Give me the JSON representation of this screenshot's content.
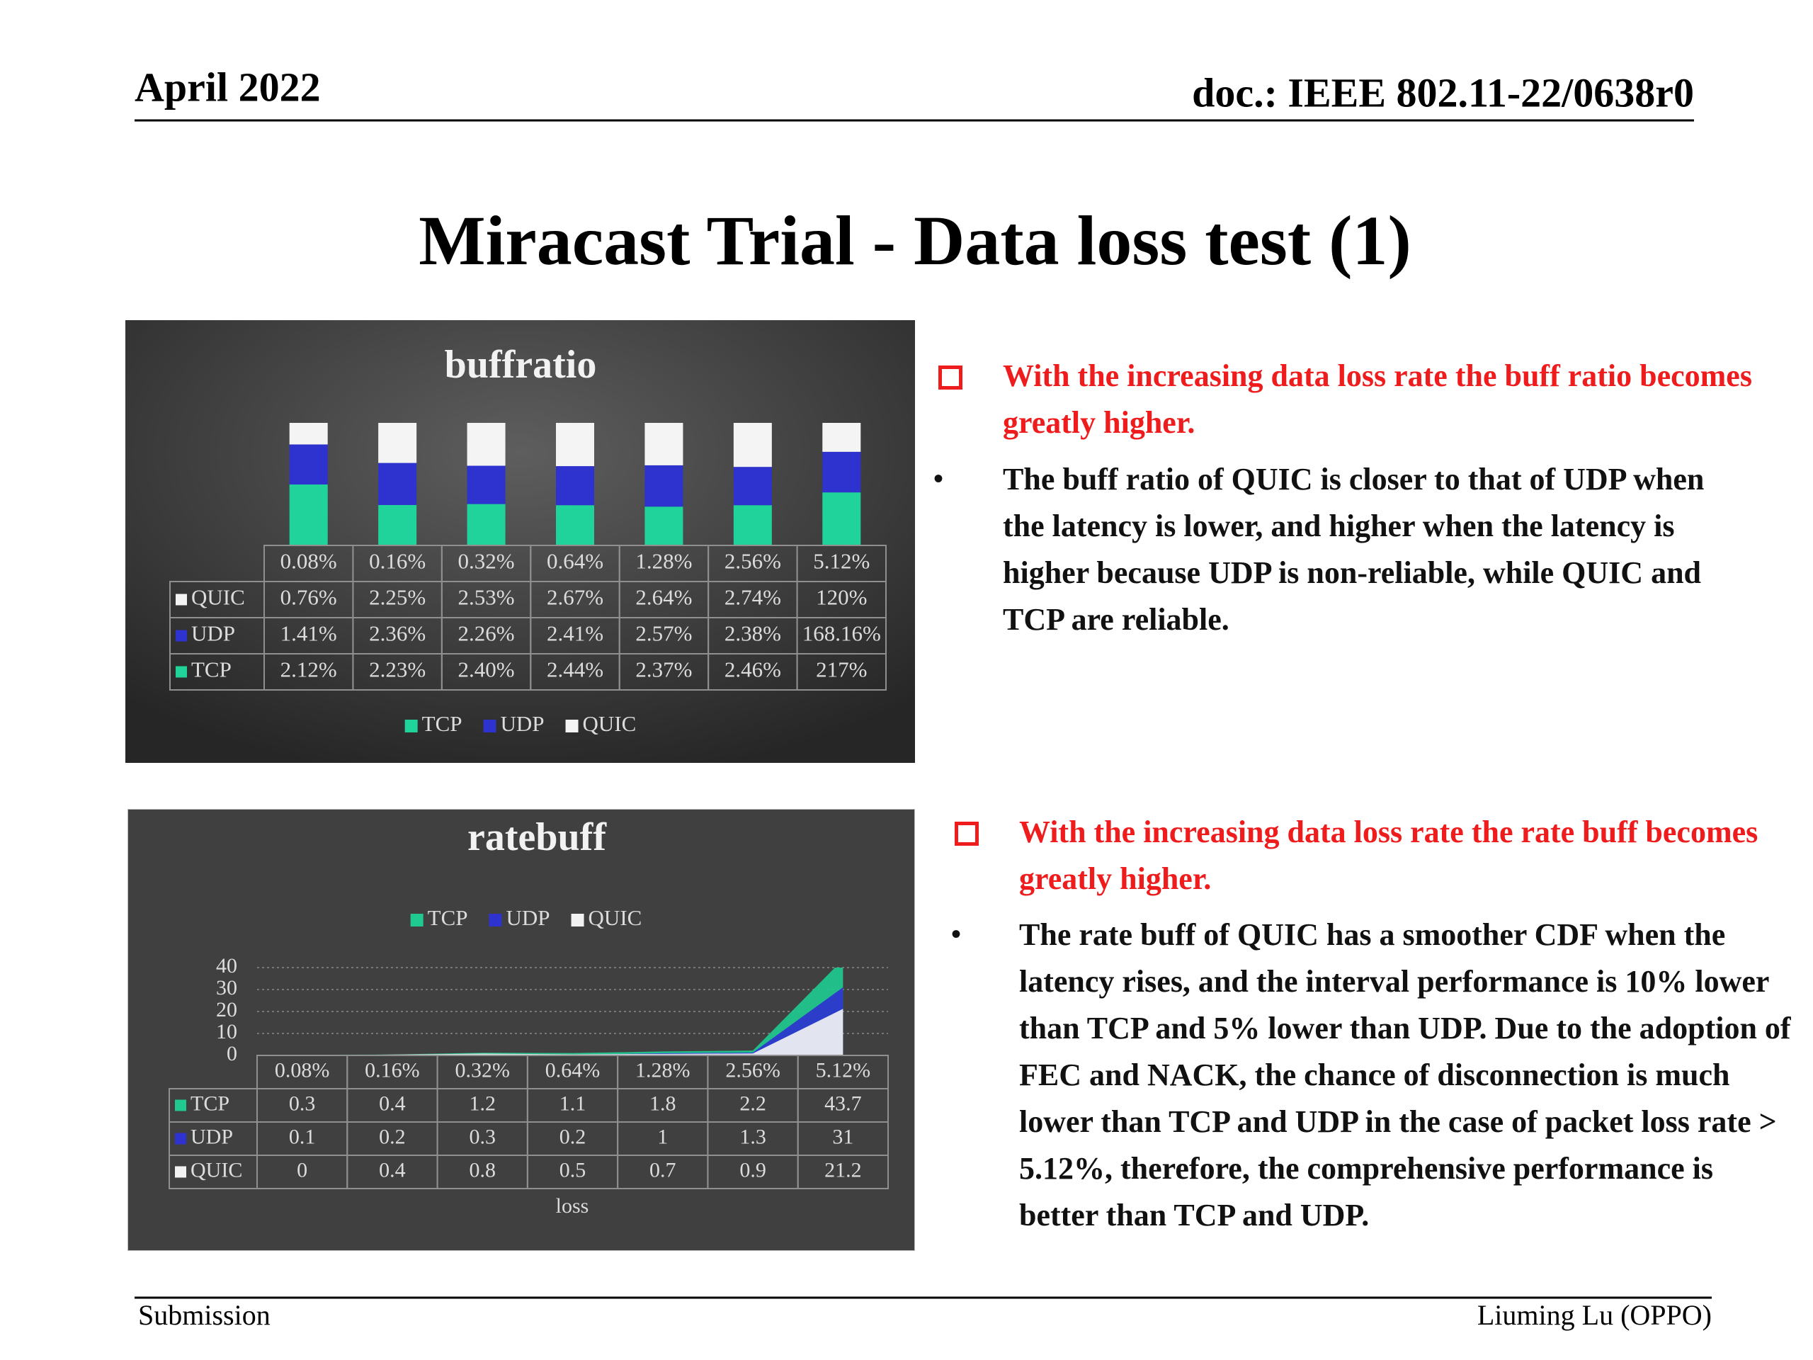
{
  "header": {
    "date": "April 2022",
    "doc": "doc.: IEEE 802.11-22/0638r0"
  },
  "title": "Miracast Trial - Data loss test (1)",
  "chart_data": [
    {
      "type": "bar",
      "stacking": "percent",
      "title": "buffratio",
      "legend": "bottom",
      "categories": [
        "0.08%",
        "0.16%",
        "0.32%",
        "0.64%",
        "1.28%",
        "2.56%",
        "5.12%"
      ],
      "series": [
        {
          "name": "TCP",
          "color": "#1fd39b",
          "values": [
            2.12,
            2.23,
            2.4,
            2.44,
            2.37,
            2.46,
            217
          ],
          "value_labels": [
            "2.12%",
            "2.23%",
            "2.40%",
            "2.44%",
            "2.37%",
            "2.46%",
            "217%"
          ]
        },
        {
          "name": "UDP",
          "color": "#2e32cf",
          "values": [
            1.41,
            2.36,
            2.26,
            2.41,
            2.57,
            2.38,
            168.16
          ],
          "value_labels": [
            "1.41%",
            "2.36%",
            "2.26%",
            "2.41%",
            "2.57%",
            "2.38%",
            "168.16%"
          ]
        },
        {
          "name": "QUIC",
          "color": "#f4f4f4",
          "values": [
            0.76,
            2.25,
            2.53,
            2.67,
            2.64,
            2.74,
            120
          ],
          "value_labels": [
            "0.76%",
            "2.25%",
            "2.53%",
            "2.67%",
            "2.64%",
            "2.74%",
            "120%"
          ]
        }
      ]
    },
    {
      "type": "area",
      "title": "ratebuff",
      "legend": "top",
      "xlabel": "loss",
      "categories": [
        "0.08%",
        "0.16%",
        "0.32%",
        "0.64%",
        "1.28%",
        "2.56%",
        "5.12%"
      ],
      "series": [
        {
          "name": "TCP",
          "color": "#1fc98f",
          "values": [
            0.3,
            0.4,
            1.2,
            1.1,
            1.8,
            2.2,
            43.7
          ]
        },
        {
          "name": "UDP",
          "color": "#2e32cf",
          "values": [
            0.1,
            0.2,
            0.3,
            0.2,
            1,
            1.3,
            31
          ]
        },
        {
          "name": "QUIC",
          "color": "#f2f2f2",
          "values": [
            0,
            0.4,
            0.8,
            0.5,
            0.7,
            0.9,
            21.2
          ]
        }
      ],
      "ylim": [
        0,
        40
      ],
      "yticks": [
        0,
        10,
        20,
        30,
        40
      ],
      "grid": true
    }
  ],
  "sections": [
    {
      "highlight": "With the increasing data loss rate the buff ratio becomes greatly higher.",
      "bullet": "The buff ratio of QUIC is closer to that of UDP when the latency is lower, and higher when the latency is higher because UDP is non-reliable, while QUIC and TCP are reliable."
    },
    {
      "highlight": "With the increasing data loss rate the rate buff becomes greatly higher.",
      "bullet": "The rate buff of QUIC has a smoother CDF when the latency rises, and the interval performance is 10% lower than TCP and 5% lower than UDP. Due to the adoption of FEC and NACK, the chance of disconnection is much lower than TCP and UDP in the case of packet loss rate > 5.12%, therefore, the comprehensive performance is better than TCP and UDP."
    }
  ],
  "footer": {
    "left": "Submission",
    "right": "Liuming Lu (OPPO)"
  }
}
